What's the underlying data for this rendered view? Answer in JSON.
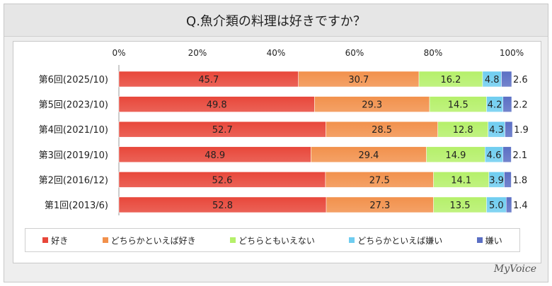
{
  "brand": "MyVoice",
  "chart_data": {
    "type": "bar",
    "orientation": "horizontal",
    "stacked": true,
    "title": "Q.魚介類の料理は好きですか？",
    "categories": [
      "第6回(2025/10)",
      "第5回(2023/10)",
      "第4回(2021/10)",
      "第3回(2019/10)",
      "第2回(2016/12)",
      "第1回(2013/6)"
    ],
    "xlim": [
      0,
      100
    ],
    "x_ticks": [
      "0%",
      "20%",
      "40%",
      "60%",
      "80%",
      "100%"
    ],
    "x_tick_values": [
      0,
      20,
      40,
      60,
      80,
      100
    ],
    "grid": false,
    "legend_position": "bottom",
    "series": [
      {
        "name": "好き",
        "color": "#e8473a",
        "values": [
          45.7,
          49.8,
          52.7,
          48.9,
          52.6,
          52.8
        ]
      },
      {
        "name": "どちらかといえば好き",
        "color": "#f2914c",
        "values": [
          30.7,
          29.3,
          28.5,
          29.4,
          27.5,
          27.3
        ]
      },
      {
        "name": "どちらともいえない",
        "color": "#b5f06a",
        "values": [
          16.2,
          14.5,
          12.8,
          14.9,
          14.1,
          13.5
        ]
      },
      {
        "name": "どちらかといえば嫌い",
        "color": "#6fcdf0",
        "values": [
          4.8,
          4.2,
          4.3,
          4.6,
          3.9,
          5.0
        ]
      },
      {
        "name": "嫌い",
        "color": "#5b6fc4",
        "values": [
          2.6,
          2.2,
          1.9,
          2.1,
          1.8,
          1.4
        ]
      }
    ]
  }
}
